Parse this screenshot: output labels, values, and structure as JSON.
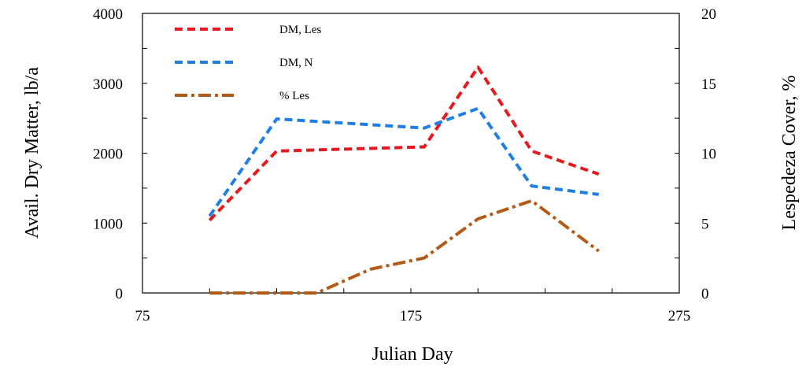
{
  "chart_data": {
    "type": "line",
    "xlabel": "Julian Day",
    "ylabel": "Avail. Dry Matter, lb/a",
    "y2label": "Lespedeza Cover, %",
    "xlim": [
      75,
      275
    ],
    "ylim": [
      0,
      4000
    ],
    "y2lim": [
      0,
      20
    ],
    "x_ticks": [
      75,
      175,
      275
    ],
    "y_ticks": [
      0,
      1000,
      2000,
      3000,
      4000
    ],
    "y2_ticks": [
      0,
      5,
      10,
      15,
      20
    ],
    "grid": false,
    "legend_position": "top-left",
    "series": [
      {
        "name": "DM, Les",
        "axis": "left",
        "color": "#e8191e",
        "style": "dashed",
        "x": [
          100,
          125,
          180,
          200,
          220,
          245
        ],
        "values": [
          1040,
          2030,
          2090,
          3230,
          2030,
          1700
        ]
      },
      {
        "name": "DM, N",
        "axis": "left",
        "color": "#1f7fe6",
        "style": "dashed",
        "x": [
          100,
          125,
          180,
          200,
          220,
          245
        ],
        "values": [
          1100,
          2490,
          2360,
          2640,
          1530,
          1410
        ]
      },
      {
        "name": "% Les",
        "axis": "right",
        "color": "#b35a17",
        "style": "dashdot",
        "x": [
          100,
          125,
          140,
          160,
          180,
          200,
          220,
          245
        ],
        "values": [
          0,
          0,
          0,
          1.7,
          2.5,
          5.3,
          6.6,
          3.0
        ]
      }
    ]
  }
}
